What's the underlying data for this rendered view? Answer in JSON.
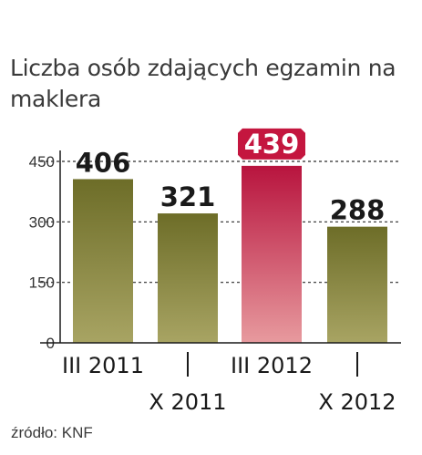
{
  "title": "Liczba osób zdających egzamin na maklera",
  "source": "źródło: KNF",
  "chart_data": {
    "type": "bar",
    "categories": [
      "III 2011",
      "X 2011",
      "III 2012",
      "X 2012"
    ],
    "values": [
      406,
      321,
      439,
      288
    ],
    "value_labels": [
      "406",
      "321",
      "439",
      "288"
    ],
    "highlight_index": 2,
    "ylim": [
      0,
      450
    ],
    "yticks": [
      0,
      150,
      300,
      450
    ],
    "ytick_labels": [
      "0",
      "150",
      "300",
      "450"
    ],
    "grid": "dashed",
    "colors": {
      "bar_top": "#6d6d28",
      "bar_bottom": "#a8a463",
      "highlight_top": "#b8143e",
      "highlight_bottom": "#e79a9e",
      "highlight_label_bg": "#c4163f",
      "text": "#1a1a1a"
    }
  }
}
